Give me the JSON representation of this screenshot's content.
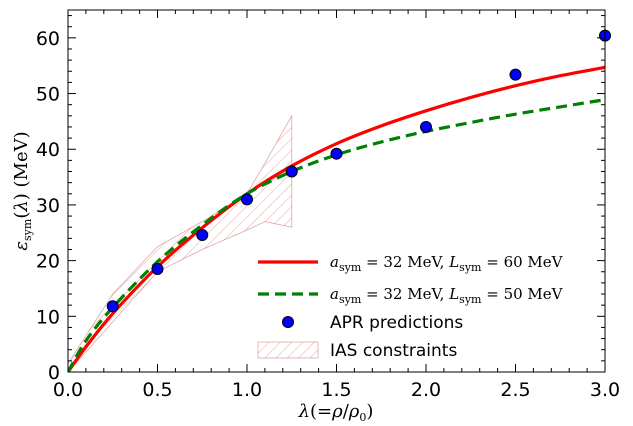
{
  "chart_data": {
    "type": "line",
    "xlabel": "λ(=ρ/ρ₀)",
    "ylabel": "εsym(λ) (MeV)",
    "xlim": [
      0.0,
      3.0
    ],
    "ylim": [
      0,
      65
    ],
    "xticks": [
      "0.0",
      "0.5",
      "1.0",
      "1.5",
      "2.0",
      "2.5",
      "3.0"
    ],
    "yticks": [
      "0",
      "10",
      "20",
      "30",
      "40",
      "50",
      "60"
    ],
    "x_tick_values": [
      0.0,
      0.5,
      1.0,
      1.5,
      2.0,
      2.5,
      3.0
    ],
    "y_tick_values": [
      0,
      10,
      20,
      30,
      40,
      50,
      60
    ],
    "legend_position": "lower-right",
    "series": [
      {
        "name": "a_sym = 32 MeV, L_sym = 60 MeV",
        "kind": "line",
        "color": "#ff0000",
        "style": "solid",
        "x": [
          0.0,
          0.1,
          0.25,
          0.5,
          0.75,
          1.0,
          1.25,
          1.5,
          1.75,
          2.0,
          2.25,
          2.5,
          2.75,
          3.0
        ],
        "y": [
          0.0,
          4.5,
          10.5,
          18.9,
          25.9,
          32.0,
          37.0,
          41.0,
          44.2,
          46.9,
          49.3,
          51.4,
          53.2,
          54.7
        ]
      },
      {
        "name": "a_sym = 32 MeV, L_sym = 50 MeV",
        "kind": "line",
        "color": "#008000",
        "style": "dashed",
        "x": [
          0.0,
          0.1,
          0.25,
          0.5,
          0.75,
          1.0,
          1.25,
          1.5,
          1.75,
          2.0,
          2.25,
          2.5,
          2.75,
          3.0
        ],
        "y": [
          0.0,
          5.6,
          11.6,
          19.8,
          26.4,
          32.0,
          36.0,
          39.0,
          41.3,
          43.2,
          44.8,
          46.3,
          47.6,
          48.9
        ]
      },
      {
        "name": "APR predictions",
        "kind": "scatter",
        "color": "#0000ff",
        "x": [
          0.25,
          0.5,
          0.75,
          1.0,
          1.25,
          1.5,
          2.0,
          2.5,
          3.0
        ],
        "y": [
          11.8,
          18.5,
          24.6,
          31.0,
          36.0,
          39.2,
          44.0,
          53.4,
          60.4
        ]
      },
      {
        "name": "IAS constraints",
        "kind": "band",
        "color": "#cd5c5c",
        "x": [
          0.0,
          0.25,
          0.5,
          0.75,
          1.0,
          1.1,
          1.25
        ],
        "upper": [
          1.5,
          14.0,
          22.5,
          27.0,
          32.0,
          37.5,
          46.0
        ],
        "lower": [
          0.0,
          9.0,
          18.0,
          22.0,
          25.5,
          27.0,
          26.0
        ]
      }
    ],
    "legend": [
      {
        "type": "line-red",
        "math": true,
        "a_main": "a",
        "a_sub": "sym",
        "a_val": " = 32 MeV, ",
        "l_main": "L",
        "l_sub": "sym",
        "l_val": " = 60 MeV"
      },
      {
        "type": "line-green",
        "math": true,
        "a_main": "a",
        "a_sub": "sym",
        "a_val": " = 32 MeV, ",
        "l_main": "L",
        "l_sub": "sym",
        "l_val": " = 50 MeV"
      },
      {
        "type": "marker",
        "math": false,
        "text": "APR predictions"
      },
      {
        "type": "hatch",
        "math": false,
        "text": "IAS constraints"
      }
    ]
  }
}
